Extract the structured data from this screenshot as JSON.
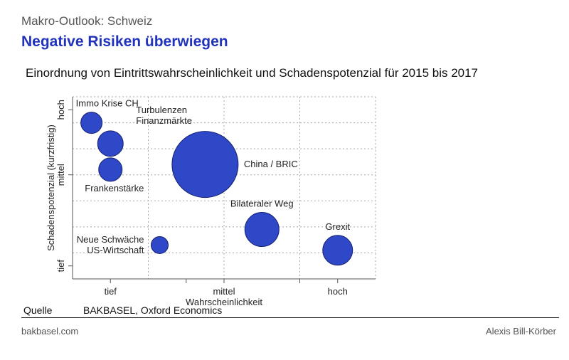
{
  "header": {
    "kicker": "Makro-Outlook: Schweiz",
    "title": "Negative Risiken überwiegen"
  },
  "chart_data": {
    "type": "scatter",
    "title": "Einordnung von Eintrittswahrscheinlichkeit und Schadenspotenzial für 2015 bis 2017",
    "xlabel": "Wahrscheinlichkeit",
    "ylabel": "Schadenspotenzial (kurzfristig)",
    "xlim": [
      0,
      4
    ],
    "ylim": [
      0,
      7
    ],
    "x_tick_labels": [
      {
        "value": 0.5,
        "label": "tief"
      },
      {
        "value": 1.5,
        "label": ""
      },
      {
        "value": 2,
        "label": "mittel"
      },
      {
        "value": 3,
        "label": ""
      },
      {
        "value": 3.5,
        "label": "hoch"
      }
    ],
    "y_tick_labels": [
      {
        "value": 0.5,
        "label": "tief"
      },
      {
        "value": 4,
        "label": "mittel"
      },
      {
        "value": 6.5,
        "label": "hoch"
      }
    ],
    "grid": true,
    "bubble_color": "#2f48c8",
    "points": [
      {
        "label": "Immo Krise CH",
        "x": 0.25,
        "y": 6.0,
        "size": 1.0
      },
      {
        "label": "Turbulenzen\nFinanzmärkte",
        "x": 0.5,
        "y": 5.2,
        "size": 1.2
      },
      {
        "label": "Frankenstärke",
        "x": 0.5,
        "y": 4.2,
        "size": 1.1
      },
      {
        "label": "China / BRIC",
        "x": 1.75,
        "y": 4.4,
        "size": 3.1
      },
      {
        "label": "Neue Schwäche\nUS-Wirtschaft",
        "x": 1.15,
        "y": 1.3,
        "size": 0.8
      },
      {
        "label": "Bilateraler Weg",
        "x": 2.5,
        "y": 1.9,
        "size": 1.6
      },
      {
        "label": "Grexit",
        "x": 3.5,
        "y": 1.1,
        "size": 1.4
      }
    ]
  },
  "source": {
    "label": "Quelle",
    "text": "BAKBASEL, Oxford Economics"
  },
  "footer": {
    "left": "bakbasel.com",
    "right": "Alexis Bill-Körber"
  }
}
